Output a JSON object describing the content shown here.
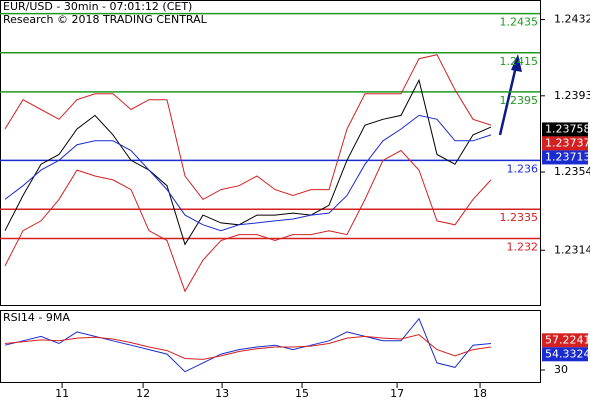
{
  "chart_data": [
    {
      "type": "line",
      "title": "EUR/USD - 30min - 07:01:12 (CET)",
      "subtitle": "Research © 2018 TRADING CENTRAL",
      "x": [
        0,
        1,
        2,
        3,
        4,
        5,
        6,
        7,
        8,
        9,
        10,
        11,
        12,
        13,
        14,
        15,
        16,
        17,
        18,
        19,
        20,
        21,
        22,
        23,
        24,
        25,
        26,
        27
      ],
      "xlim": [
        -0.28,
        29.72
      ],
      "xticks": [
        {
          "value": 3.17,
          "label": "11"
        },
        {
          "value": 7.67,
          "label": "12"
        },
        {
          "value": 12.06,
          "label": "13"
        },
        {
          "value": 16.5,
          "label": "15"
        },
        {
          "value": 21.78,
          "label": "17"
        },
        {
          "value": 26.39,
          "label": "18"
        }
      ],
      "ylim": [
        1.2286,
        1.2442
      ],
      "yticks": [
        1.2432,
        1.2393,
        1.2354,
        1.2314
      ],
      "series": [
        {
          "color": "#000000",
          "values": [
            1.2324,
            1.2342,
            1.2358,
            1.2363,
            1.2376,
            1.2383,
            1.2373,
            1.236,
            1.2355,
            1.2347,
            1.2317,
            1.2332,
            1.2328,
            1.2327,
            1.2332,
            1.2332,
            1.2333,
            1.2332,
            1.2337,
            1.236,
            1.2378,
            1.2381,
            1.2383,
            1.2401,
            1.2363,
            1.2358,
            1.2373,
            1.2377
          ]
        },
        {
          "color": "#d42020",
          "values": [
            1.2376,
            1.2391,
            1.2386,
            1.2381,
            1.2391,
            1.2394,
            1.2394,
            1.2386,
            1.2391,
            1.2391,
            1.2352,
            1.234,
            1.2345,
            1.2347,
            1.2352,
            1.2345,
            1.2342,
            1.2345,
            1.2345,
            1.2376,
            1.2394,
            1.2394,
            1.2394,
            1.2412,
            1.2414,
            1.2396,
            1.2381,
            1.2378
          ]
        },
        {
          "color": "#d42020",
          "values": [
            1.2306,
            1.2324,
            1.2329,
            1.234,
            1.2355,
            1.2352,
            1.235,
            1.2345,
            1.2324,
            1.2319,
            1.2293,
            1.2309,
            1.2319,
            1.2322,
            1.2322,
            1.2319,
            1.2322,
            1.2322,
            1.2324,
            1.2322,
            1.234,
            1.236,
            1.2365,
            1.2355,
            1.2329,
            1.2327,
            1.234,
            1.235
          ]
        },
        {
          "color": "#1a2bd0",
          "values": [
            1.234,
            1.2347,
            1.2355,
            1.236,
            1.2368,
            1.237,
            1.237,
            1.2365,
            1.2355,
            1.2345,
            1.2332,
            1.2327,
            1.2324,
            1.2327,
            1.2328,
            1.2329,
            1.233,
            1.2332,
            1.2333,
            1.2342,
            1.2358,
            1.237,
            1.2376,
            1.2383,
            1.2381,
            1.237,
            1.237,
            1.2373
          ]
        }
      ],
      "levels": [
        {
          "value": 1.2435,
          "color": "#1f9a1f"
        },
        {
          "value": 1.2415,
          "color": "#1f9a1f"
        },
        {
          "value": 1.2395,
          "color": "#1f9a1f"
        },
        {
          "value": 1.236,
          "color": "#1a2bd0"
        },
        {
          "value": 1.2335,
          "color": "#d42020"
        },
        {
          "value": 1.232,
          "color": "#d42020"
        }
      ],
      "price_tags": [
        {
          "value": 1.23758,
          "color": "#000000"
        },
        {
          "value": 1.23737,
          "color": "#d42020"
        },
        {
          "value": 1.23713,
          "color": "#1a2bd0"
        }
      ]
    },
    {
      "type": "line",
      "title": "RSI14 - 9MA",
      "x": [
        0,
        1,
        2,
        3,
        4,
        5,
        6,
        7,
        8,
        9,
        10,
        11,
        12,
        13,
        14,
        15,
        16,
        17,
        18,
        19,
        20,
        21,
        22,
        23,
        24,
        25,
        26,
        27
      ],
      "xlim": [
        -0.28,
        29.72
      ],
      "ylim": [
        19,
        85
      ],
      "yticks": [
        30
      ],
      "series": [
        {
          "color": "#1a2bd0",
          "values": [
            52.7,
            56.8,
            60.8,
            54.3,
            64.9,
            60.8,
            56.8,
            52.7,
            48.7,
            44.6,
            28.4,
            36.5,
            44.6,
            48.7,
            51.1,
            52.7,
            48.7,
            52.7,
            56.8,
            64.9,
            60.8,
            56.8,
            56.8,
            77.0,
            36.5,
            32.4,
            52.7,
            54.3
          ]
        },
        {
          "color": "#d42020",
          "values": [
            54.3,
            55.9,
            57.6,
            56.8,
            59.2,
            60.0,
            58.4,
            55.1,
            51.1,
            47.8,
            40.5,
            39.7,
            42.9,
            47.0,
            49.5,
            51.1,
            51.1,
            51.9,
            54.3,
            59.2,
            60.8,
            59.2,
            58.4,
            62.4,
            48.7,
            43.0,
            48.7,
            51.1
          ]
        }
      ],
      "price_tags": [
        {
          "value": 57.2241,
          "color": "#d42020"
        },
        {
          "value": 54.3324,
          "color": "#1a2bd0"
        }
      ]
    }
  ]
}
